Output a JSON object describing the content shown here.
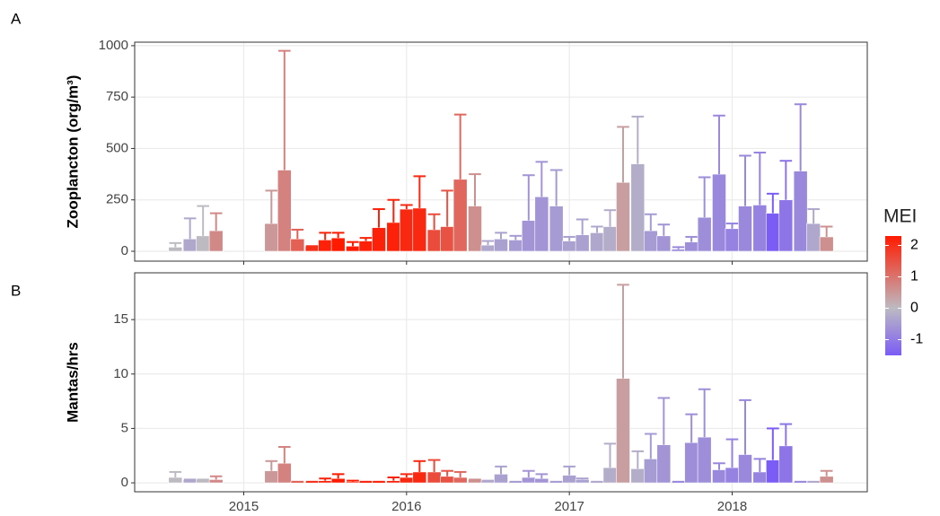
{
  "chart_data": [
    {
      "type": "bar",
      "label": "A",
      "y_label": "Zooplancton (org/m³)",
      "x": [
        2014.58,
        2014.67,
        2014.75,
        2014.83,
        2014.92,
        2015.0,
        2015.08,
        2015.17,
        2015.25,
        2015.33,
        2015.42,
        2015.5,
        2015.58,
        2015.67,
        2015.75,
        2015.83,
        2015.92,
        2016.0,
        2016.08,
        2016.17,
        2016.25,
        2016.33,
        2016.42,
        2016.5,
        2016.58,
        2016.67,
        2016.75,
        2016.83,
        2016.92,
        2017.0,
        2017.08,
        2017.17,
        2017.25,
        2017.33,
        2017.42,
        2017.5,
        2017.58,
        2017.67,
        2017.75,
        2017.83,
        2017.92,
        2018.0,
        2018.08,
        2018.17,
        2018.25,
        2018.33,
        2018.42,
        2018.5,
        2018.58,
        2018.67
      ],
      "values": [
        20,
        60,
        75,
        100,
        null,
        null,
        null,
        135,
        395,
        60,
        25,
        55,
        65,
        25,
        50,
        115,
        140,
        205,
        210,
        105,
        120,
        350,
        220,
        30,
        60,
        55,
        150,
        265,
        220,
        50,
        80,
        90,
        120,
        335,
        425,
        100,
        75,
        10,
        45,
        165,
        375,
        110,
        220,
        225,
        185,
        250,
        390,
        135,
        70,
        null
      ],
      "errors": [
        20,
        100,
        145,
        85,
        null,
        null,
        null,
        160,
        580,
        45,
        0,
        35,
        25,
        20,
        15,
        90,
        110,
        20,
        155,
        75,
        175,
        315,
        155,
        20,
        30,
        20,
        220,
        170,
        175,
        20,
        75,
        30,
        80,
        270,
        230,
        80,
        55,
        10,
        25,
        195,
        285,
        25,
        245,
        255,
        95,
        190,
        325,
        70,
        50,
        null
      ],
      "xlim": [
        2014.33,
        2018.83
      ],
      "ylim": [
        -48,
        1017
      ],
      "xticks": [
        2015,
        2016,
        2017,
        2018
      ],
      "yticks": [
        0,
        250,
        500,
        750,
        1000
      ],
      "grid": true
    },
    {
      "type": "bar",
      "label": "B",
      "y_label": "Mantas/hrs",
      "x": [
        2014.58,
        2014.67,
        2014.75,
        2014.83,
        2014.92,
        2015.0,
        2015.08,
        2015.17,
        2015.25,
        2015.33,
        2015.42,
        2015.5,
        2015.58,
        2015.67,
        2015.75,
        2015.83,
        2015.92,
        2016.0,
        2016.08,
        2016.17,
        2016.25,
        2016.33,
        2016.42,
        2016.5,
        2016.58,
        2016.67,
        2016.75,
        2016.83,
        2016.92,
        2017.0,
        2017.08,
        2017.17,
        2017.25,
        2017.33,
        2017.42,
        2017.5,
        2017.58,
        2017.67,
        2017.75,
        2017.83,
        2017.92,
        2018.0,
        2018.08,
        2018.17,
        2018.25,
        2018.33,
        2018.42,
        2018.5,
        2018.58,
        2018.67
      ],
      "values": [
        0.5,
        0.3,
        0.3,
        0.3,
        null,
        null,
        null,
        1.1,
        1.8,
        0.1,
        0.1,
        0.2,
        0.4,
        0.1,
        0.1,
        0.1,
        0.2,
        0.5,
        1.0,
        1.0,
        0.6,
        0.5,
        0.3,
        0.2,
        0.8,
        0.1,
        0.5,
        0.4,
        0.1,
        0.7,
        0.3,
        0.1,
        1.4,
        9.6,
        1.3,
        2.2,
        3.5,
        0.1,
        3.7,
        4.2,
        1.2,
        1.4,
        2.6,
        1.0,
        2.1,
        3.4,
        0.1,
        0.1,
        0.6,
        null
      ],
      "errors": [
        0.5,
        0,
        0,
        0.3,
        null,
        null,
        null,
        0.9,
        1.5,
        0,
        0,
        0.2,
        0.4,
        0.1,
        0,
        0,
        0.3,
        0.3,
        1.0,
        1.1,
        0.5,
        0.5,
        0,
        0,
        0.7,
        0,
        0.6,
        0.4,
        0,
        0.8,
        0.1,
        0,
        2.2,
        8.6,
        1.6,
        2.3,
        4.3,
        0,
        2.6,
        4.4,
        0.6,
        2.6,
        5.0,
        1.2,
        2.9,
        2.0,
        0,
        0,
        0.5,
        null
      ],
      "xlim": [
        2014.33,
        2018.83
      ],
      "ylim": [
        -0.82,
        19.3
      ],
      "xticks": [
        2015,
        2016,
        2017,
        2018
      ],
      "yticks": [
        0,
        5,
        10,
        15
      ],
      "grid": true
    }
  ],
  "color_scale": {
    "title": "MEI",
    "values": [
      0,
      -0.3,
      0,
      0.7,
      0.3,
      0.4,
      0.5,
      0.5,
      0.8,
      1.3,
      2,
      2.2,
      2.3,
      2.3,
      2.2,
      2.2,
      2.2,
      2.1,
      2.1,
      1.6,
      1.5,
      1.2,
      0.6,
      -0.3,
      -0.4,
      -0.5,
      -0.6,
      -0.6,
      -0.5,
      -0.4,
      -0.4,
      -0.3,
      -0.2,
      0.4,
      -0.2,
      -0.5,
      -0.6,
      -0.8,
      -0.7,
      -0.7,
      -0.8,
      -0.9,
      -0.8,
      -0.9,
      -1.5,
      -1.1,
      -0.8,
      -0.3,
      0.6,
      0.5
    ],
    "lim": [
      -1.5,
      2.3
    ],
    "ticks": [
      -1,
      0,
      1,
      2
    ],
    "colors": [
      "#7b5cf5",
      "#bdbac2",
      "#ff1a00"
    ]
  }
}
